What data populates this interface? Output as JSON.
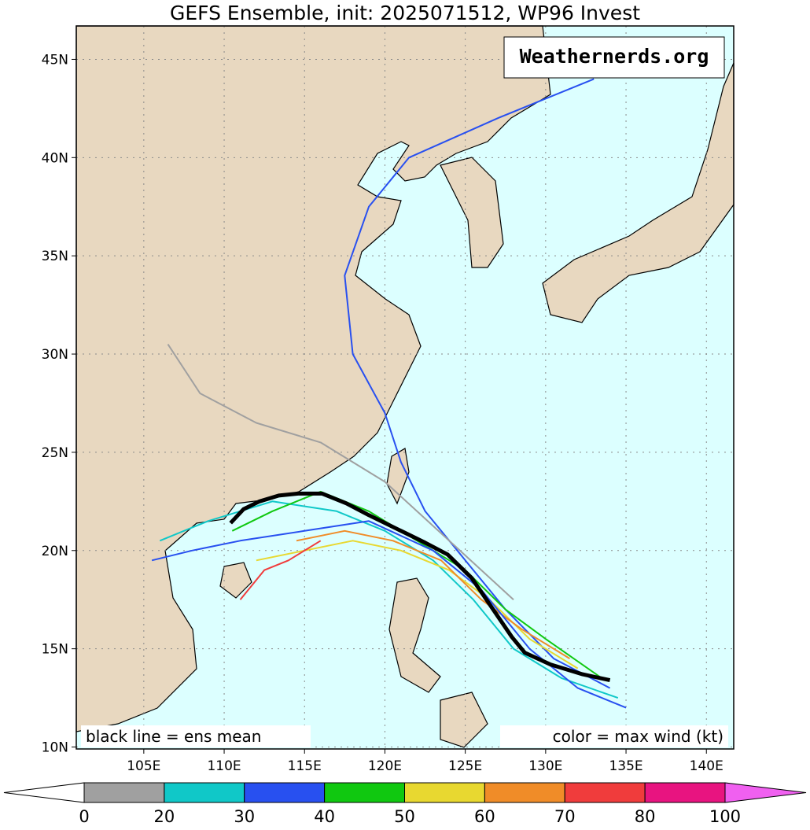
{
  "chart_data": {
    "type": "track",
    "title": "GEFS Ensemble, init: 2025071512, WP96 Invest",
    "watermark": "Weathernerds.org",
    "annotation_left": "black line = ens mean",
    "annotation_right": "color = max wind (kt)",
    "xlim": [
      100.8,
      141.7
    ],
    "ylim": [
      9.9,
      46.7
    ],
    "xticks": [
      {
        "value": 105,
        "label": "105E"
      },
      {
        "value": 110,
        "label": "110E"
      },
      {
        "value": 115,
        "label": "115E"
      },
      {
        "value": 120,
        "label": "120E"
      },
      {
        "value": 125,
        "label": "125E"
      },
      {
        "value": 130,
        "label": "130E"
      },
      {
        "value": 135,
        "label": "135E"
      },
      {
        "value": 140,
        "label": "140E"
      }
    ],
    "yticks": [
      {
        "value": 10,
        "label": "10N"
      },
      {
        "value": 15,
        "label": "15N"
      },
      {
        "value": 20,
        "label": "20N"
      },
      {
        "value": 25,
        "label": "25N"
      },
      {
        "value": 30,
        "label": "30N"
      },
      {
        "value": 35,
        "label": "35N"
      },
      {
        "value": 40,
        "label": "40N"
      },
      {
        "value": 45,
        "label": "45N"
      }
    ],
    "grid": true,
    "colorbar": {
      "bounds": [
        0,
        20,
        30,
        40,
        50,
        60,
        70,
        80,
        100
      ],
      "colors": [
        "#a0a0a0",
        "#10c8c8",
        "#2850f0",
        "#10c810",
        "#e8d830",
        "#f08c28",
        "#f03c3c",
        "#e81480"
      ],
      "under": "#ffffff",
      "over": "#f060f0"
    },
    "mean": {
      "name": "ens mean",
      "color": "#000000",
      "x": [
        134.0,
        132.3,
        130.3,
        128.7,
        127.9,
        126.9,
        125.4,
        123.9,
        122.5,
        121.0,
        119.0,
        117.6,
        116.1,
        114.6,
        113.4,
        112.2,
        111.2,
        110.4
      ],
      "y": [
        13.4,
        13.7,
        14.2,
        14.8,
        15.6,
        16.8,
        18.6,
        19.8,
        20.4,
        21.0,
        21.8,
        22.4,
        22.9,
        22.9,
        22.8,
        22.5,
        22.1,
        21.4
      ]
    },
    "series": [
      {
        "color": "#10c8c8",
        "x": [
          134.5,
          131.0,
          128.0,
          125.5,
          123.0,
          120.0,
          117.0,
          113.0,
          109.0,
          106.0
        ],
        "y": [
          12.5,
          13.5,
          15.0,
          17.5,
          19.5,
          21.0,
          22.0,
          22.5,
          21.5,
          20.5
        ]
      },
      {
        "color": "#2850f0",
        "x": [
          134.0,
          130.5,
          127.5,
          125.0,
          122.5,
          121.0,
          120.0,
          118.0,
          117.5,
          119.0,
          121.5,
          127.0,
          133.0
        ],
        "y": [
          13.0,
          14.5,
          17.0,
          19.5,
          22.0,
          24.5,
          27.0,
          30.0,
          34.0,
          37.5,
          40.0,
          42.0,
          44.0
        ]
      },
      {
        "color": "#10c810",
        "x": [
          133.5,
          130.0,
          127.5,
          125.0,
          122.0,
          119.0,
          116.0,
          113.0,
          110.5
        ],
        "y": [
          13.5,
          15.5,
          17.0,
          19.0,
          20.5,
          22.0,
          23.0,
          22.0,
          21.0
        ]
      },
      {
        "color": "#e8d830",
        "x": [
          132.0,
          129.0,
          126.5,
          124.0,
          121.0,
          118.0,
          115.0,
          112.0
        ],
        "y": [
          14.0,
          15.5,
          17.5,
          19.0,
          20.0,
          20.5,
          20.0,
          19.5
        ]
      },
      {
        "color": "#f08c28",
        "x": [
          131.5,
          128.5,
          126.0,
          123.5,
          120.5,
          117.5,
          114.5
        ],
        "y": [
          14.5,
          16.0,
          17.5,
          19.5,
          20.5,
          21.0,
          20.5
        ]
      },
      {
        "color": "#a0a0a0",
        "x": [
          128.0,
          124.0,
          120.0,
          116.0,
          112.0,
          108.5,
          106.5
        ],
        "y": [
          17.5,
          20.5,
          23.5,
          25.5,
          26.5,
          28.0,
          30.5
        ]
      },
      {
        "color": "#f03c3c",
        "x": [
          116.0,
          114.0,
          112.5,
          111.5,
          111.0
        ],
        "y": [
          20.5,
          19.5,
          19.0,
          18.0,
          17.5
        ]
      },
      {
        "color": "#2850f0",
        "x": [
          135.0,
          132.0,
          129.0,
          126.0,
          123.0,
          119.0,
          115.0,
          111.0,
          108.0,
          105.5
        ],
        "y": [
          12.0,
          13.0,
          15.0,
          18.0,
          20.0,
          21.5,
          21.0,
          20.5,
          20.0,
          19.5
        ]
      }
    ]
  }
}
